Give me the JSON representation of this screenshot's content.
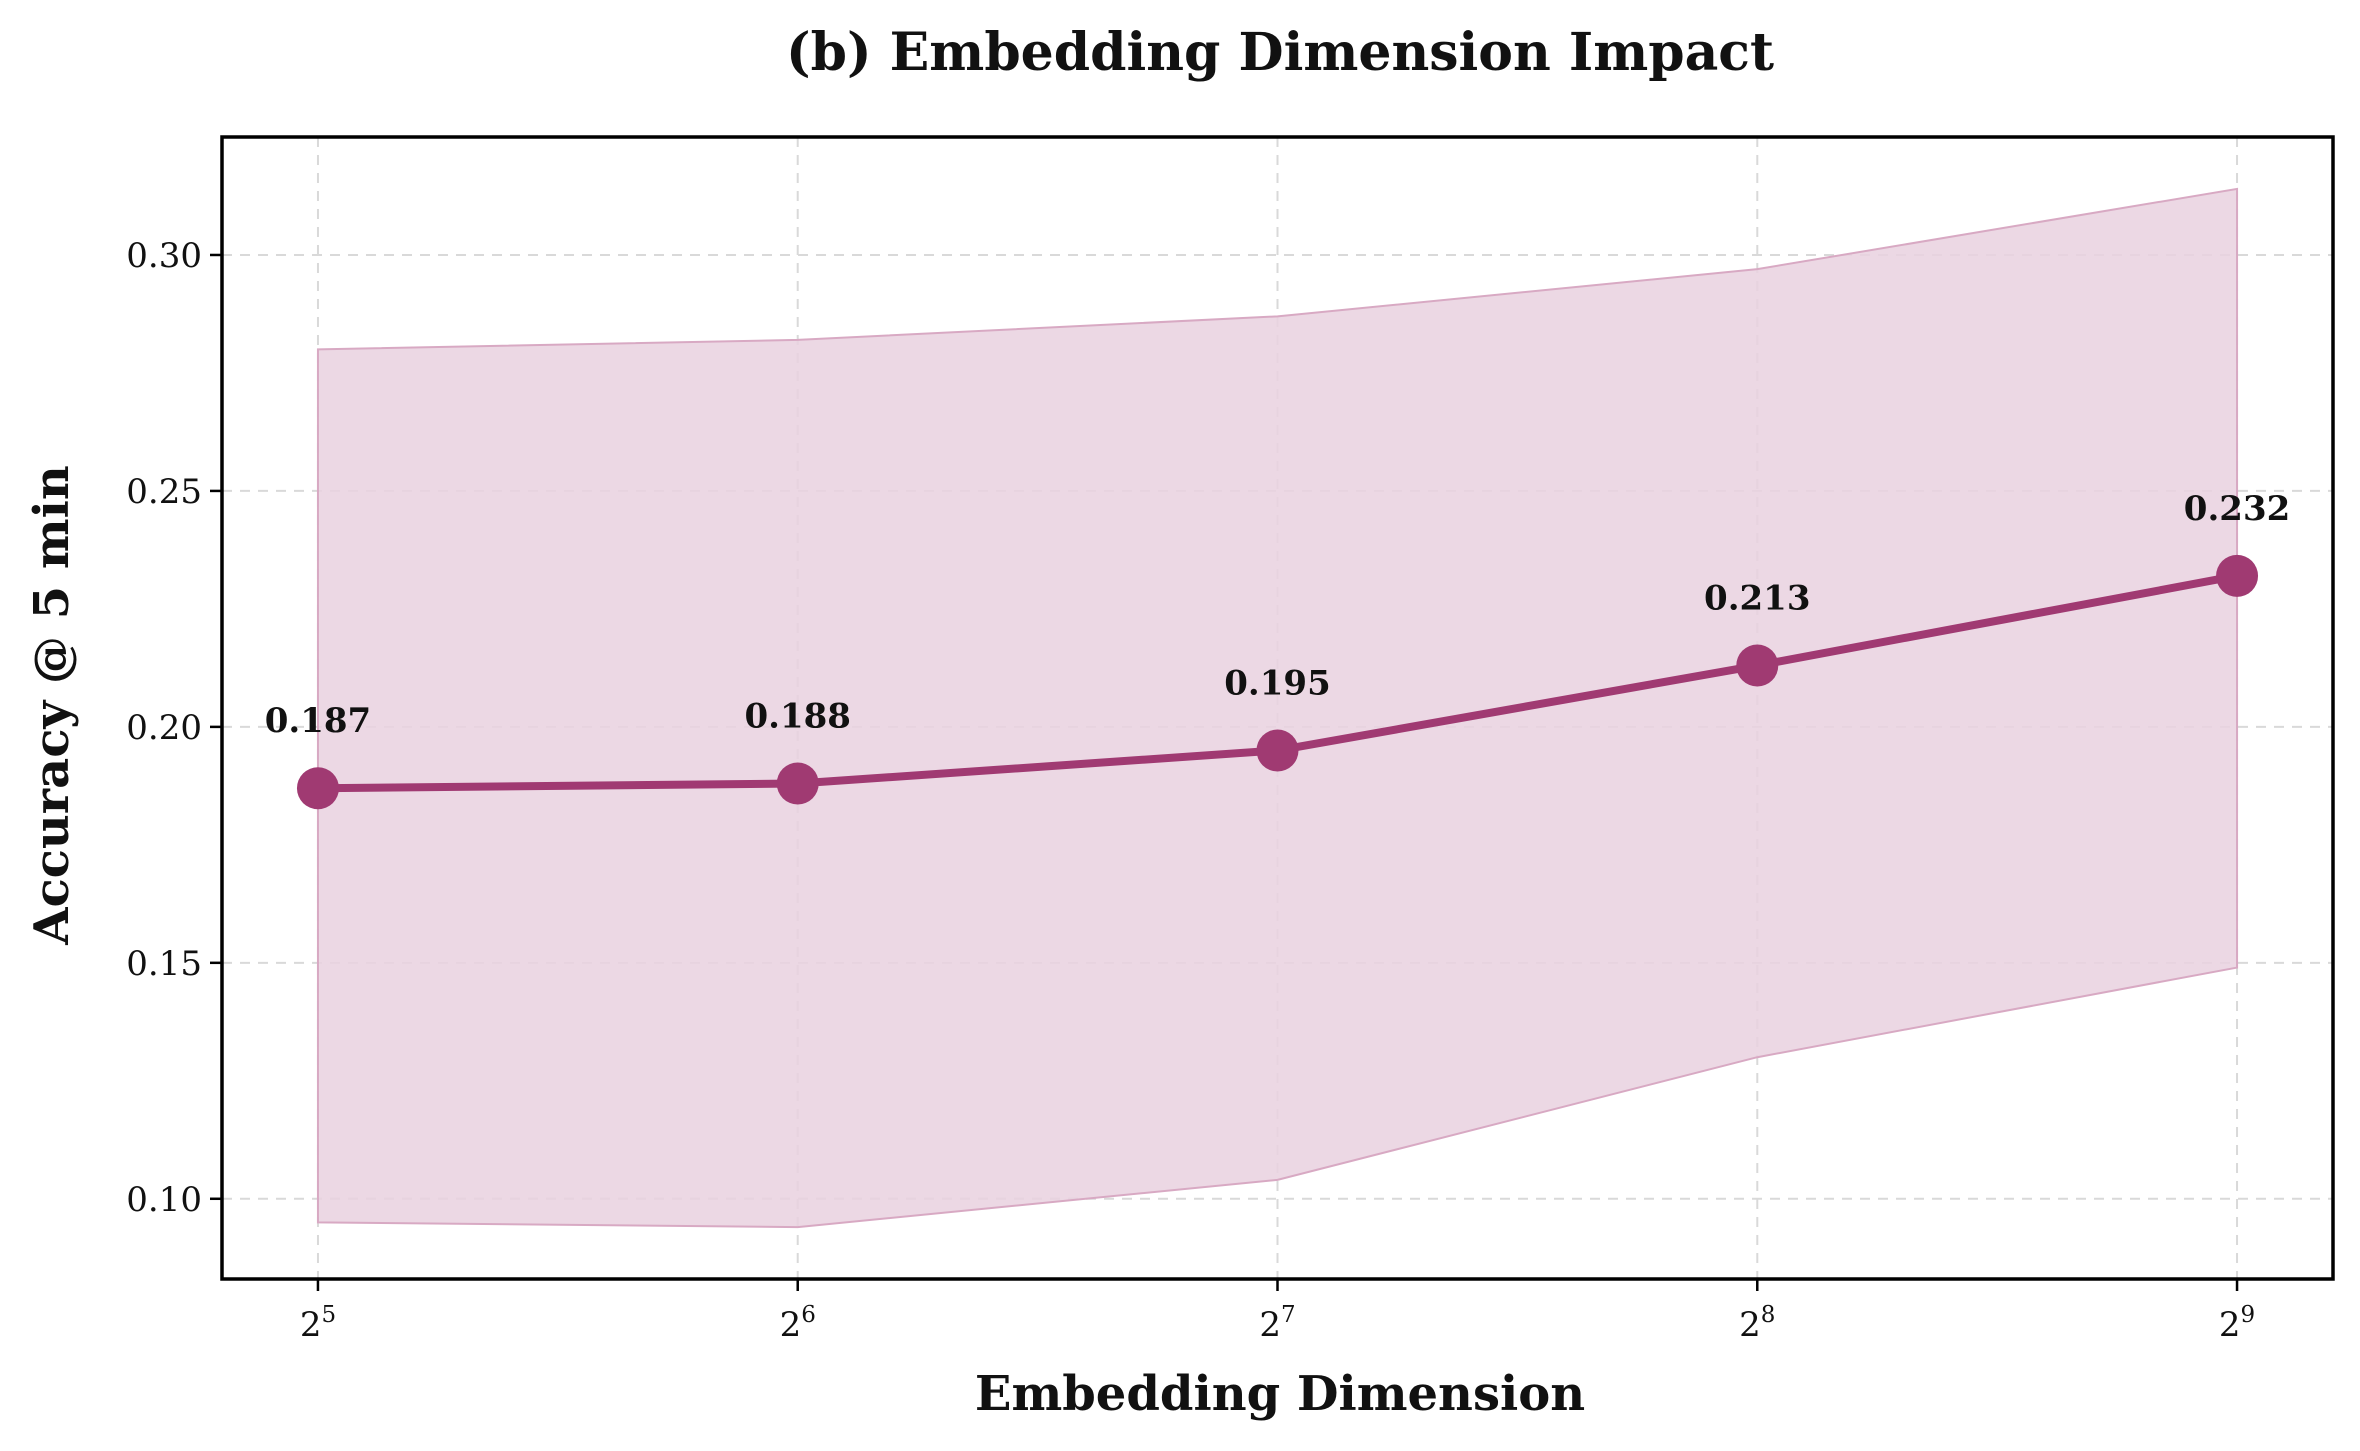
{
  "chart_data": {
    "type": "line",
    "title": "(b) Embedding Dimension Impact",
    "xlabel": "Embedding Dimension",
    "ylabel": "Accuracy @ 5 min",
    "x_scale": "log2",
    "x": [
      32,
      64,
      128,
      256,
      512
    ],
    "x_tick_labels": [
      {
        "base": "2",
        "exp": "5"
      },
      {
        "base": "2",
        "exp": "6"
      },
      {
        "base": "2",
        "exp": "7"
      },
      {
        "base": "2",
        "exp": "8"
      },
      {
        "base": "2",
        "exp": "9"
      }
    ],
    "y_ticks": [
      "0.10",
      "0.15",
      "0.20",
      "0.25",
      "0.30"
    ],
    "y_tick_values": [
      0.1,
      0.15,
      0.2,
      0.25,
      0.3
    ],
    "ylim": [
      0.083,
      0.325
    ],
    "xlim_exponent": [
      4.8,
      9.2
    ],
    "grid": true,
    "series": [
      {
        "name": "Accuracy @ 5 min",
        "values": [
          0.187,
          0.188,
          0.195,
          0.213,
          0.232
        ],
        "data_labels": [
          "0.187",
          "0.188",
          "0.195",
          "0.213",
          "0.232"
        ],
        "band_upper": [
          0.28,
          0.282,
          0.287,
          0.297,
          0.314
        ],
        "band_lower": [
          0.095,
          0.094,
          0.104,
          0.13,
          0.149
        ],
        "color": "#a03a72",
        "band_color": "#e9d1df"
      }
    ]
  }
}
